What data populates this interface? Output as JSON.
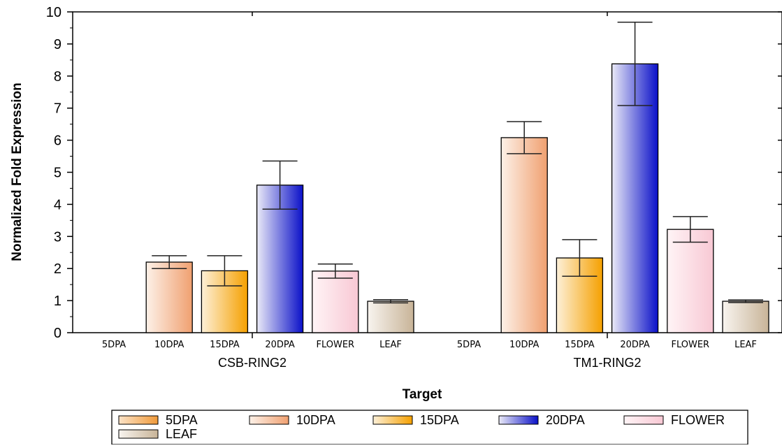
{
  "chart_data": {
    "type": "bar",
    "title": "",
    "xlabel": "Target",
    "ylabel": "Normalized Fold Expression",
    "ylim": [
      0,
      10
    ],
    "yticks": [
      0,
      1,
      2,
      3,
      4,
      5,
      6,
      7,
      8,
      9,
      10
    ],
    "categories": [
      "5DPA",
      "10DPA",
      "15DPA",
      "20DPA",
      "FLOWER",
      "LEAF"
    ],
    "groups": [
      "CSB-RING2",
      "TM1-RING2"
    ],
    "series": [
      {
        "group": "CSB-RING2",
        "values": [
          0.0,
          2.2,
          1.93,
          4.6,
          1.92,
          0.98
        ],
        "errors": [
          0.0,
          0.2,
          0.47,
          0.75,
          0.22,
          0.05
        ]
      },
      {
        "group": "TM1-RING2",
        "values": [
          0.0,
          6.08,
          2.33,
          8.38,
          3.22,
          0.98
        ],
        "errors": [
          0.0,
          0.5,
          0.57,
          1.3,
          0.4,
          0.04
        ]
      }
    ],
    "legend": {
      "position": "bottom",
      "entries": [
        {
          "label": "5DPA",
          "color_light": "#fbe3c8",
          "color_dark": "#f09a3a"
        },
        {
          "label": "10DPA",
          "color_light": "#fdf1e8",
          "color_dark": "#f0a070"
        },
        {
          "label": "15DPA",
          "color_light": "#fdf0d8",
          "color_dark": "#f5a000"
        },
        {
          "label": "20DPA",
          "color_light": "#eaeaf7",
          "color_dark": "#0a10c8"
        },
        {
          "label": "FLOWER",
          "color_light": "#fff4f6",
          "color_dark": "#f8c8d4"
        },
        {
          "label": "LEAF",
          "color_light": "#f8f4ef",
          "color_dark": "#c8b498"
        }
      ]
    },
    "grid": false
  }
}
